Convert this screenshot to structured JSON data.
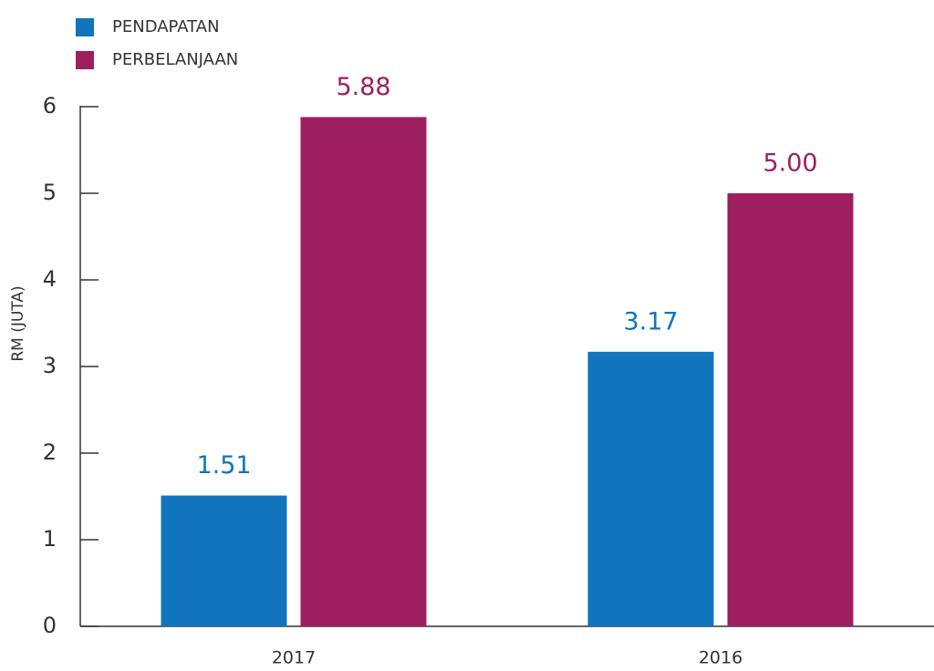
{
  "chart_data": {
    "type": "bar",
    "y_label": "RM (JUTA)",
    "categories": [
      "2017",
      "2016"
    ],
    "series": [
      {
        "name": "PENDAPATAN",
        "color": "#1174bd",
        "values": [
          1.51,
          3.17
        ],
        "value_labels": [
          "1.51",
          "3.17"
        ]
      },
      {
        "name": "PERBELANJAAN",
        "color": "#9e1f5f",
        "values": [
          5.88,
          5.0
        ],
        "value_labels": [
          "5.88",
          "5.00"
        ]
      }
    ],
    "ylim": [
      0,
      6
    ],
    "yticks": [
      0,
      1,
      2,
      3,
      4,
      5,
      6
    ],
    "legend": "top-left"
  }
}
